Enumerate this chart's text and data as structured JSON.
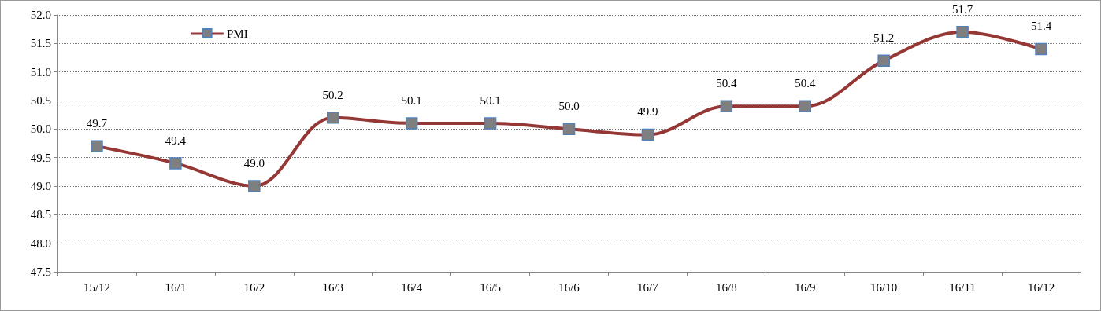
{
  "chart_data": {
    "type": "line",
    "categories": [
      "15/12",
      "16/1",
      "16/2",
      "16/3",
      "16/4",
      "16/5",
      "16/6",
      "16/7",
      "16/8",
      "16/9",
      "16/10",
      "16/11",
      "16/12"
    ],
    "series": [
      {
        "name": "PMI",
        "color": "#953735",
        "values": [
          49.7,
          49.4,
          49.0,
          50.2,
          50.1,
          50.1,
          50.0,
          49.9,
          50.4,
          50.4,
          51.2,
          51.7,
          51.4
        ],
        "value_labels": [
          "49.7",
          "49.4",
          "49.0",
          "50.2",
          "50.1",
          "50.1",
          "50.0",
          "49.9",
          "50.4",
          "50.4",
          "51.2",
          "51.7",
          "51.4"
        ]
      }
    ],
    "ylim": [
      47.5,
      52.0
    ],
    "yticks": [
      47.5,
      {
        "value": 48,
        "label": "48.0"
      },
      48.5,
      {
        "value": 49,
        "label": "49.0"
      },
      49.5,
      {
        "value": 50,
        "label": "50.0"
      },
      50.5,
      {
        "value": 51,
        "label": "51.0"
      },
      51.5,
      {
        "value": 52,
        "label": "52.0"
      }
    ],
    "grid": "y",
    "legend": "top left",
    "marker": "square",
    "line_style": "solid"
  }
}
